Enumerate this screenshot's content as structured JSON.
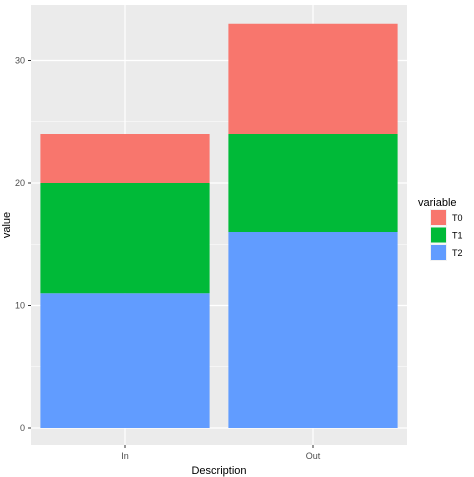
{
  "chart_data": {
    "type": "bar",
    "stacked": true,
    "categories": [
      "In",
      "Out"
    ],
    "series": [
      {
        "name": "T2",
        "color": "#619CFF",
        "values": [
          11,
          16
        ]
      },
      {
        "name": "T1",
        "color": "#00BA38",
        "values": [
          9,
          8
        ]
      },
      {
        "name": "T0",
        "color": "#F8766D",
        "values": [
          4,
          9
        ]
      }
    ],
    "legend": {
      "title": "variable",
      "position": "right",
      "order": [
        "T0",
        "T1",
        "T2"
      ]
    },
    "xlabel": "Description",
    "ylabel": "value",
    "ylim": [
      0,
      33
    ],
    "yticks": [
      0,
      10,
      20,
      30
    ],
    "yticks_minor": [
      5,
      15,
      25
    ],
    "grid": true,
    "panel_color": "#EBEBEB",
    "grid_color": "#FFFFFF"
  }
}
